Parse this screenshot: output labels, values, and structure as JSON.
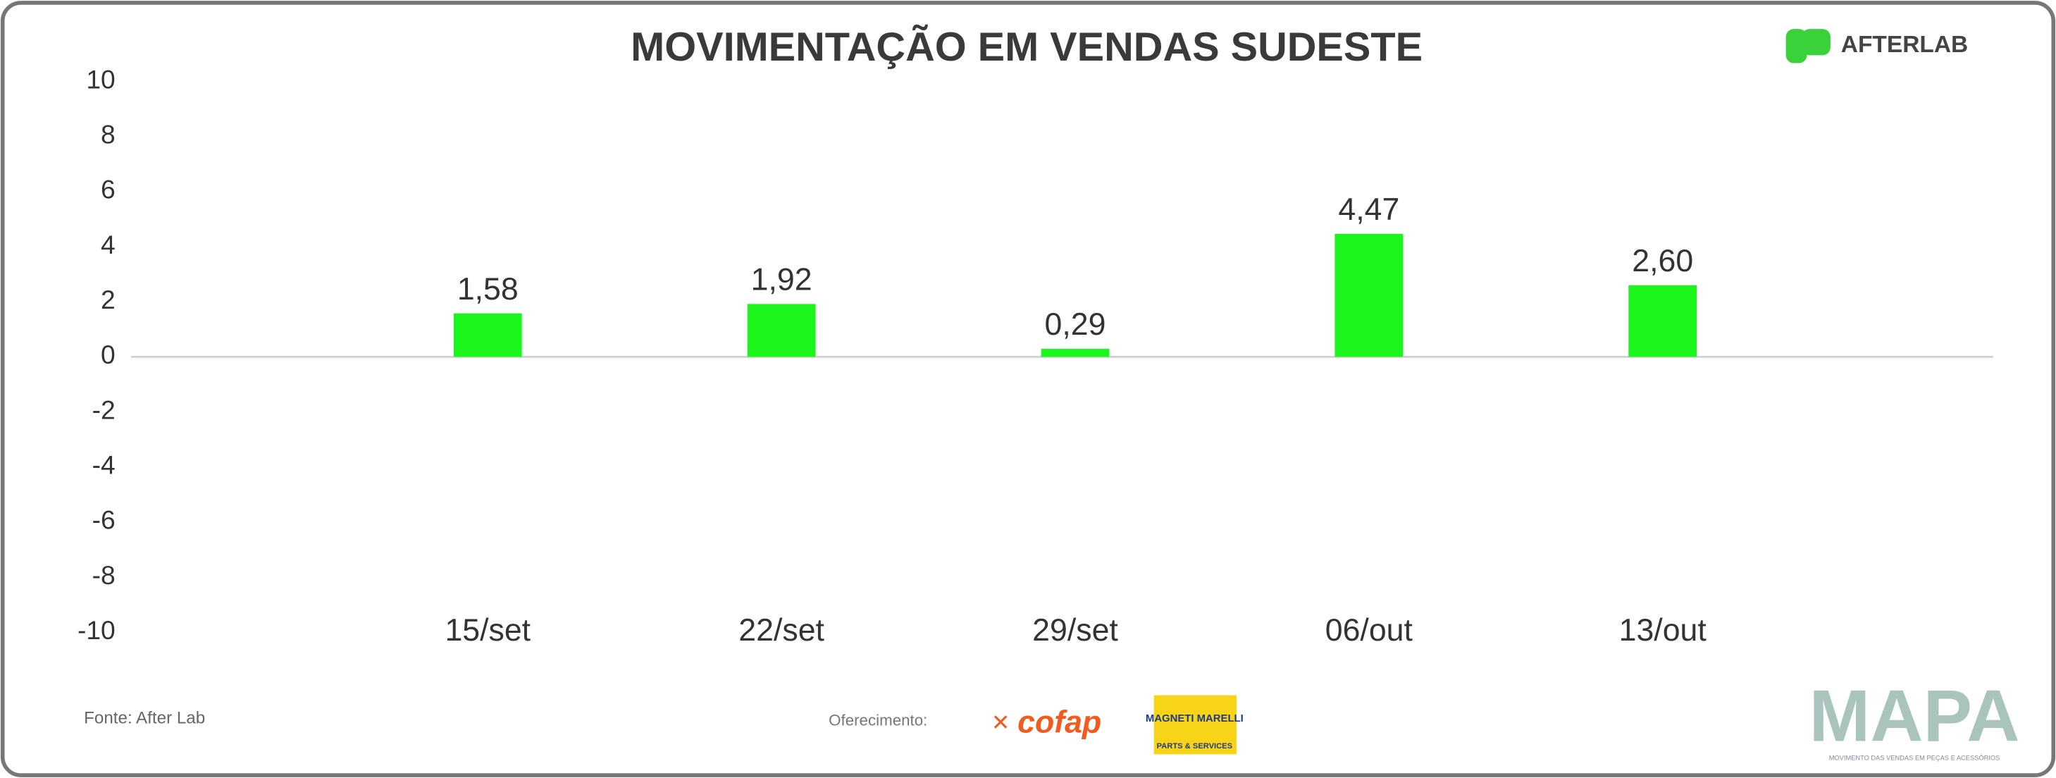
{
  "chart_data": {
    "type": "bar",
    "title": "MOVIMENTAÇÃO EM VENDAS SUDESTE",
    "categories": [
      "15/set",
      "22/set",
      "29/set",
      "06/out",
      "13/out"
    ],
    "values": [
      1.58,
      1.92,
      0.29,
      4.47,
      2.6
    ],
    "value_labels": [
      "1,58",
      "1,92",
      "0,29",
      "4,47",
      "2,60"
    ],
    "color": "#1cf51c",
    "ylim": [
      -10,
      10
    ],
    "yticks": [
      -10,
      -8,
      -6,
      -4,
      -2,
      0,
      2,
      4,
      6,
      8,
      10
    ],
    "grid": false
  },
  "source": "Fonte: After Lab",
  "sponsor_label": "Oferecimento:",
  "logos": {
    "afterlab": "AFTERLAB",
    "cofap": "cofap",
    "magneti": "MAGNETI MARELLI",
    "magneti_sub": "PARTS & SERVICES",
    "mapa": "MAPA",
    "mapa_sub": "MOVIMENTO DAS VENDAS EM PEÇAS E ACESSÓRIOS"
  }
}
